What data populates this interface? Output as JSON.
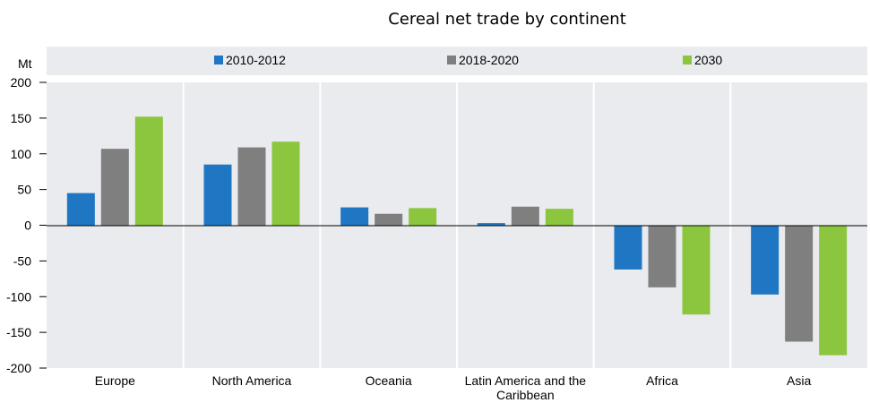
{
  "chart_data": {
    "type": "bar",
    "title": "Cereal net trade by continent",
    "ylabel": "Mt",
    "xlabel": "",
    "categories": [
      "Europe",
      "North America",
      "Oceania",
      "Latin America and the Caribbean",
      "Africa",
      "Asia"
    ],
    "category_lines": [
      [
        "Europe"
      ],
      [
        "North America"
      ],
      [
        "Oceania"
      ],
      [
        "Latin America and the",
        "Caribbean"
      ],
      [
        "Africa"
      ],
      [
        "Asia"
      ]
    ],
    "series": [
      {
        "name": "2010-2012",
        "color": "#1f77c4",
        "values": [
          45,
          85,
          25,
          3,
          -62,
          -97
        ]
      },
      {
        "name": "2018-2020",
        "color": "#7f7f7f",
        "values": [
          107,
          109,
          16,
          26,
          -87,
          -163
        ]
      },
      {
        "name": "2030",
        "color": "#8cc63e",
        "values": [
          152,
          117,
          24,
          23,
          -125,
          -182
        ]
      }
    ],
    "ylim": [
      -200,
      200
    ],
    "yticks": [
      200,
      150,
      100,
      50,
      0,
      -50,
      -100,
      -150,
      -200
    ],
    "grid": true,
    "legend": "top",
    "colors": {
      "panel": "#e9ebee",
      "separator": "#ffffff",
      "zero_line": "#000000"
    }
  }
}
